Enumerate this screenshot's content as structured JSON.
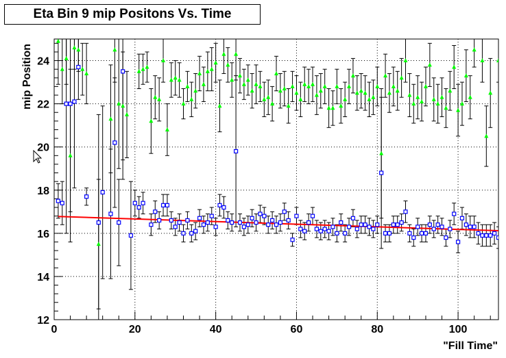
{
  "chart_data": {
    "type": "scatter",
    "title": "Eta Bin 9 mip Positons Vs. Time",
    "xlabel": "\"Fill Time\"",
    "ylabel": "mip Position",
    "xlim": [
      0,
      110
    ],
    "ylim": [
      12,
      25
    ],
    "x_ticks": [
      "0",
      "20",
      "40",
      "60",
      "80",
      "100"
    ],
    "y_ticks": [
      "12",
      "14",
      "16",
      "18",
      "20",
      "22",
      "24"
    ],
    "grid": true,
    "legend": "none",
    "colors": {
      "green_series": "#00ff00",
      "blue_series": "#0000ff",
      "fit_line": "#ff0000",
      "errors": "#000000"
    },
    "series": [
      {
        "marker": "triangle",
        "points": [
          {
            "x": 1,
            "y": 24.9,
            "e": 2.0
          },
          {
            "x": 2,
            "y": 23.6,
            "e": 1.6
          },
          {
            "x": 3,
            "y": 24.1,
            "e": 1.2
          },
          {
            "x": 4,
            "y": 19.6,
            "e": 4.0
          },
          {
            "x": 5,
            "y": 24.6,
            "e": 1.0
          },
          {
            "x": 6,
            "y": 24.5,
            "e": 1.0
          },
          {
            "x": 7,
            "y": 23.6,
            "e": 1.2
          },
          {
            "x": 8,
            "y": 23.4,
            "e": 1.4
          },
          {
            "x": 11,
            "y": 15.5,
            "e": 3.0
          },
          {
            "x": 14,
            "y": 21.3,
            "e": 2.5
          },
          {
            "x": 15,
            "y": 24.5,
            "e": 1.5
          },
          {
            "x": 16,
            "y": 22.0,
            "e": 3.0
          },
          {
            "x": 17,
            "y": 21.9,
            "e": 2.5
          },
          {
            "x": 18,
            "y": 21.5,
            "e": 2.0
          },
          {
            "x": 21,
            "y": 23.5,
            "e": 0.8
          },
          {
            "x": 22,
            "y": 23.6,
            "e": 0.7
          },
          {
            "x": 23,
            "y": 23.7,
            "e": 0.7
          },
          {
            "x": 24,
            "y": 21.2,
            "e": 1.5
          },
          {
            "x": 25,
            "y": 22.3,
            "e": 1.0
          },
          {
            "x": 26,
            "y": 22.2,
            "e": 1.0
          },
          {
            "x": 27,
            "y": 24.0,
            "e": 1.0
          },
          {
            "x": 28,
            "y": 20.8,
            "e": 1.2
          },
          {
            "x": 29,
            "y": 23.1,
            "e": 0.8
          },
          {
            "x": 30,
            "y": 23.2,
            "e": 0.8
          },
          {
            "x": 31,
            "y": 23.1,
            "e": 0.8
          },
          {
            "x": 32,
            "y": 22.0,
            "e": 0.7
          },
          {
            "x": 33,
            "y": 22.8,
            "e": 0.7
          },
          {
            "x": 34,
            "y": 22.2,
            "e": 0.8
          },
          {
            "x": 35,
            "y": 22.6,
            "e": 0.8
          },
          {
            "x": 36,
            "y": 23.4,
            "e": 0.8
          },
          {
            "x": 37,
            "y": 22.9,
            "e": 0.8
          },
          {
            "x": 38,
            "y": 23.5,
            "e": 0.9
          },
          {
            "x": 39,
            "y": 23.6,
            "e": 1.0
          },
          {
            "x": 40,
            "y": 23.9,
            "e": 0.9
          },
          {
            "x": 41,
            "y": 21.9,
            "e": 1.2
          },
          {
            "x": 42,
            "y": 24.3,
            "e": 0.9
          },
          {
            "x": 43,
            "y": 23.8,
            "e": 0.8
          },
          {
            "x": 44,
            "y": 23.1,
            "e": 0.8
          },
          {
            "x": 45,
            "y": 24.3,
            "e": 1.2
          },
          {
            "x": 46,
            "y": 23.3,
            "e": 0.8
          },
          {
            "x": 47,
            "y": 22.9,
            "e": 0.7
          },
          {
            "x": 48,
            "y": 23.1,
            "e": 0.7
          },
          {
            "x": 49,
            "y": 22.6,
            "e": 0.8
          },
          {
            "x": 50,
            "y": 22.9,
            "e": 0.9
          },
          {
            "x": 51,
            "y": 22.8,
            "e": 0.7
          },
          {
            "x": 52,
            "y": 22.2,
            "e": 0.8
          },
          {
            "x": 53,
            "y": 22.3,
            "e": 0.8
          },
          {
            "x": 54,
            "y": 22.0,
            "e": 0.8
          },
          {
            "x": 55,
            "y": 23.4,
            "e": 0.8
          },
          {
            "x": 56,
            "y": 22.6,
            "e": 0.8
          },
          {
            "x": 57,
            "y": 22.7,
            "e": 0.8
          },
          {
            "x": 58,
            "y": 21.9,
            "e": 0.8
          },
          {
            "x": 59,
            "y": 22.8,
            "e": 0.7
          },
          {
            "x": 60,
            "y": 22.5,
            "e": 0.8
          },
          {
            "x": 61,
            "y": 22.2,
            "e": 0.8
          },
          {
            "x": 62,
            "y": 22.9,
            "e": 0.8
          },
          {
            "x": 63,
            "y": 22.8,
            "e": 0.8
          },
          {
            "x": 64,
            "y": 22.9,
            "e": 0.8
          },
          {
            "x": 65,
            "y": 22.4,
            "e": 0.9
          },
          {
            "x": 66,
            "y": 22.6,
            "e": 0.8
          },
          {
            "x": 67,
            "y": 22.8,
            "e": 0.8
          },
          {
            "x": 68,
            "y": 21.8,
            "e": 0.9
          },
          {
            "x": 69,
            "y": 21.8,
            "e": 0.8
          },
          {
            "x": 70,
            "y": 22.8,
            "e": 0.8
          },
          {
            "x": 71,
            "y": 21.9,
            "e": 0.8
          },
          {
            "x": 72,
            "y": 22.2,
            "e": 0.8
          },
          {
            "x": 73,
            "y": 22.8,
            "e": 0.8
          },
          {
            "x": 74,
            "y": 23.3,
            "e": 0.8
          },
          {
            "x": 75,
            "y": 22.5,
            "e": 0.8
          },
          {
            "x": 76,
            "y": 22.6,
            "e": 0.8
          },
          {
            "x": 77,
            "y": 22.5,
            "e": 0.8
          },
          {
            "x": 78,
            "y": 22.2,
            "e": 0.8
          },
          {
            "x": 79,
            "y": 22.3,
            "e": 0.8
          },
          {
            "x": 80,
            "y": 22.8,
            "e": 0.9
          },
          {
            "x": 81,
            "y": 19.7,
            "e": 3.0
          },
          {
            "x": 82,
            "y": 23.3,
            "e": 1.0
          },
          {
            "x": 83,
            "y": 22.5,
            "e": 0.9
          },
          {
            "x": 84,
            "y": 22.8,
            "e": 0.9
          },
          {
            "x": 85,
            "y": 22.6,
            "e": 0.9
          },
          {
            "x": 86,
            "y": 23.2,
            "e": 0.9
          },
          {
            "x": 87,
            "y": 24.0,
            "e": 1.0
          },
          {
            "x": 88,
            "y": 22.4,
            "e": 1.0
          },
          {
            "x": 89,
            "y": 22.0,
            "e": 0.9
          },
          {
            "x": 90,
            "y": 22.3,
            "e": 1.0
          },
          {
            "x": 91,
            "y": 22.1,
            "e": 0.9
          },
          {
            "x": 92,
            "y": 22.8,
            "e": 0.9
          },
          {
            "x": 93,
            "y": 23.8,
            "e": 1.0
          },
          {
            "x": 94,
            "y": 22.2,
            "e": 1.0
          },
          {
            "x": 95,
            "y": 22.0,
            "e": 0.9
          },
          {
            "x": 96,
            "y": 22.3,
            "e": 0.9
          },
          {
            "x": 97,
            "y": 21.8,
            "e": 0.9
          },
          {
            "x": 98,
            "y": 22.6,
            "e": 0.9
          },
          {
            "x": 99,
            "y": 23.7,
            "e": 1.0
          },
          {
            "x": 100,
            "y": 21.7,
            "e": 1.2
          },
          {
            "x": 101,
            "y": 22.0,
            "e": 1.0
          },
          {
            "x": 102,
            "y": 23.3,
            "e": 1.2
          },
          {
            "x": 103,
            "y": 22.3,
            "e": 1.0
          },
          {
            "x": 104,
            "y": 24.5,
            "e": 0.8
          },
          {
            "x": 106,
            "y": 24.0,
            "e": 1.0
          },
          {
            "x": 107,
            "y": 20.5,
            "e": 1.4
          },
          {
            "x": 108,
            "y": 22.5,
            "e": 1.6
          },
          {
            "x": 110,
            "y": 24.0,
            "e": 1.0
          }
        ]
      },
      {
        "marker": "open-square",
        "points": [
          {
            "x": 1,
            "y": 17.5,
            "e": 0.8
          },
          {
            "x": 2,
            "y": 17.4,
            "e": 1.0
          },
          {
            "x": 3,
            "y": 22.0,
            "e": 6.0
          },
          {
            "x": 4,
            "y": 22.0,
            "e": 5.0
          },
          {
            "x": 5,
            "y": 22.1,
            "e": 4.0
          },
          {
            "x": 6,
            "y": 23.7,
            "e": 1.5
          },
          {
            "x": 8,
            "y": 17.7,
            "e": 0.4
          },
          {
            "x": 11,
            "y": 16.5,
            "e": 5.0
          },
          {
            "x": 12,
            "y": 17.9,
            "e": 4.0
          },
          {
            "x": 14,
            "y": 16.9,
            "e": 3.0
          },
          {
            "x": 15,
            "y": 20.2,
            "e": 3.0
          },
          {
            "x": 16,
            "y": 16.5,
            "e": 2.0
          },
          {
            "x": 17,
            "y": 23.5,
            "e": 5.0
          },
          {
            "x": 19,
            "y": 15.9,
            "e": 2.5
          },
          {
            "x": 20,
            "y": 17.4,
            "e": 0.6
          },
          {
            "x": 21,
            "y": 17.2,
            "e": 0.5
          },
          {
            "x": 22,
            "y": 17.4,
            "e": 0.5
          },
          {
            "x": 24,
            "y": 16.4,
            "e": 0.5
          },
          {
            "x": 25,
            "y": 17.0,
            "e": 0.5
          },
          {
            "x": 26,
            "y": 16.6,
            "e": 0.4
          },
          {
            "x": 27,
            "y": 17.3,
            "e": 0.5
          },
          {
            "x": 28,
            "y": 17.3,
            "e": 0.5
          },
          {
            "x": 29,
            "y": 16.6,
            "e": 0.4
          },
          {
            "x": 30,
            "y": 16.3,
            "e": 0.4
          },
          {
            "x": 31,
            "y": 16.5,
            "e": 0.4
          },
          {
            "x": 32,
            "y": 16.0,
            "e": 0.4
          },
          {
            "x": 33,
            "y": 16.6,
            "e": 0.4
          },
          {
            "x": 34,
            "y": 16.0,
            "e": 0.4
          },
          {
            "x": 35,
            "y": 16.1,
            "e": 0.4
          },
          {
            "x": 36,
            "y": 16.7,
            "e": 0.4
          },
          {
            "x": 37,
            "y": 16.4,
            "e": 0.4
          },
          {
            "x": 38,
            "y": 16.5,
            "e": 0.4
          },
          {
            "x": 39,
            "y": 16.8,
            "e": 0.4
          },
          {
            "x": 40,
            "y": 16.3,
            "e": 0.4
          },
          {
            "x": 41,
            "y": 17.3,
            "e": 0.5
          },
          {
            "x": 42,
            "y": 17.2,
            "e": 0.5
          },
          {
            "x": 43,
            "y": 16.6,
            "e": 0.4
          },
          {
            "x": 44,
            "y": 16.5,
            "e": 0.4
          },
          {
            "x": 45,
            "y": 19.8,
            "e": 3.5
          },
          {
            "x": 46,
            "y": 16.5,
            "e": 0.4
          },
          {
            "x": 47,
            "y": 16.3,
            "e": 0.4
          },
          {
            "x": 48,
            "y": 16.4,
            "e": 0.4
          },
          {
            "x": 49,
            "y": 16.7,
            "e": 0.4
          },
          {
            "x": 50,
            "y": 16.5,
            "e": 0.4
          },
          {
            "x": 51,
            "y": 16.9,
            "e": 0.4
          },
          {
            "x": 52,
            "y": 16.8,
            "e": 0.4
          },
          {
            "x": 53,
            "y": 16.4,
            "e": 0.4
          },
          {
            "x": 54,
            "y": 16.6,
            "e": 0.4
          },
          {
            "x": 55,
            "y": 16.4,
            "e": 0.4
          },
          {
            "x": 56,
            "y": 16.5,
            "e": 0.4
          },
          {
            "x": 57,
            "y": 17.0,
            "e": 0.4
          },
          {
            "x": 58,
            "y": 16.6,
            "e": 0.4
          },
          {
            "x": 59,
            "y": 15.7,
            "e": 0.3
          },
          {
            "x": 60,
            "y": 16.8,
            "e": 0.4
          },
          {
            "x": 61,
            "y": 16.2,
            "e": 0.4
          },
          {
            "x": 62,
            "y": 16.1,
            "e": 0.4
          },
          {
            "x": 63,
            "y": 16.5,
            "e": 0.4
          },
          {
            "x": 64,
            "y": 16.8,
            "e": 0.4
          },
          {
            "x": 65,
            "y": 16.2,
            "e": 0.4
          },
          {
            "x": 66,
            "y": 16.1,
            "e": 0.4
          },
          {
            "x": 67,
            "y": 16.2,
            "e": 0.4
          },
          {
            "x": 68,
            "y": 16.1,
            "e": 0.4
          },
          {
            "x": 69,
            "y": 16.3,
            "e": 0.4
          },
          {
            "x": 70,
            "y": 16.0,
            "e": 0.4
          },
          {
            "x": 71,
            "y": 16.5,
            "e": 0.4
          },
          {
            "x": 72,
            "y": 16.0,
            "e": 0.4
          },
          {
            "x": 73,
            "y": 16.3,
            "e": 0.4
          },
          {
            "x": 74,
            "y": 16.7,
            "e": 0.4
          },
          {
            "x": 75,
            "y": 16.2,
            "e": 0.4
          },
          {
            "x": 76,
            "y": 16.4,
            "e": 0.4
          },
          {
            "x": 77,
            "y": 16.4,
            "e": 0.4
          },
          {
            "x": 78,
            "y": 16.3,
            "e": 0.4
          },
          {
            "x": 79,
            "y": 16.2,
            "e": 0.4
          },
          {
            "x": 80,
            "y": 16.4,
            "e": 0.4
          },
          {
            "x": 81,
            "y": 18.8,
            "e": 3.5
          },
          {
            "x": 82,
            "y": 16.0,
            "e": 0.4
          },
          {
            "x": 83,
            "y": 16.0,
            "e": 0.4
          },
          {
            "x": 84,
            "y": 16.4,
            "e": 0.4
          },
          {
            "x": 85,
            "y": 16.4,
            "e": 0.4
          },
          {
            "x": 86,
            "y": 16.5,
            "e": 0.4
          },
          {
            "x": 87,
            "y": 17.0,
            "e": 0.5
          },
          {
            "x": 88,
            "y": 16.0,
            "e": 0.4
          },
          {
            "x": 89,
            "y": 15.8,
            "e": 0.4
          },
          {
            "x": 90,
            "y": 16.3,
            "e": 0.4
          },
          {
            "x": 91,
            "y": 16.0,
            "e": 0.4
          },
          {
            "x": 92,
            "y": 16.0,
            "e": 0.4
          },
          {
            "x": 93,
            "y": 16.4,
            "e": 0.4
          },
          {
            "x": 94,
            "y": 16.2,
            "e": 0.4
          },
          {
            "x": 95,
            "y": 16.4,
            "e": 0.4
          },
          {
            "x": 96,
            "y": 16.3,
            "e": 0.4
          },
          {
            "x": 97,
            "y": 15.8,
            "e": 0.4
          },
          {
            "x": 98,
            "y": 16.2,
            "e": 0.4
          },
          {
            "x": 99,
            "y": 16.9,
            "e": 0.5
          },
          {
            "x": 100,
            "y": 15.6,
            "e": 0.5
          },
          {
            "x": 101,
            "y": 16.7,
            "e": 0.5
          },
          {
            "x": 102,
            "y": 16.4,
            "e": 0.5
          },
          {
            "x": 103,
            "y": 16.3,
            "e": 0.5
          },
          {
            "x": 104,
            "y": 16.3,
            "e": 0.5
          },
          {
            "x": 105,
            "y": 16.0,
            "e": 0.5
          },
          {
            "x": 106,
            "y": 15.9,
            "e": 0.5
          },
          {
            "x": 107,
            "y": 15.9,
            "e": 0.5
          },
          {
            "x": 108,
            "y": 15.9,
            "e": 0.5
          },
          {
            "x": 109,
            "y": 16.0,
            "e": 0.5
          },
          {
            "x": 110,
            "y": 15.8,
            "e": 0.5
          }
        ]
      }
    ],
    "fit_line": {
      "x": [
        1,
        110
      ],
      "y": [
        16.78,
        16.12
      ]
    }
  },
  "icons": {
    "cursor": "cursor-icon"
  }
}
